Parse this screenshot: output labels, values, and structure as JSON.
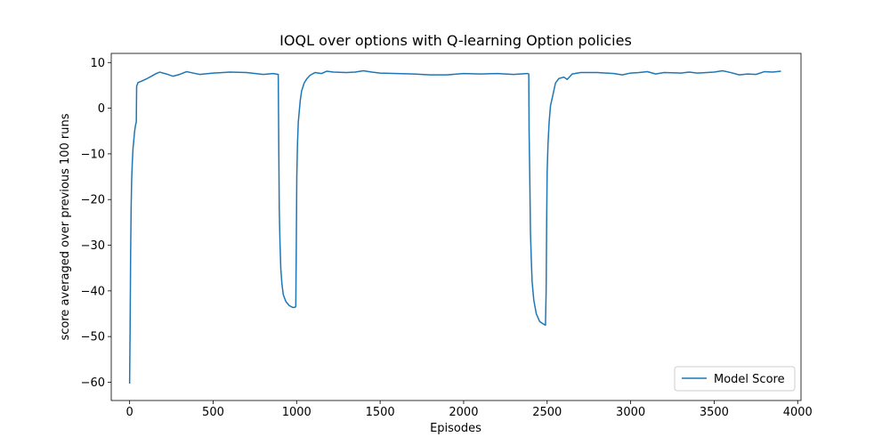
{
  "chart_data": {
    "type": "line",
    "title": "IOQL over options with Q-learning Option policies",
    "xlabel": "Episodes",
    "ylabel": "score averaged over previous 100 runs",
    "xlim": [
      -110,
      4020
    ],
    "ylim": [
      -64,
      12
    ],
    "xticks": [
      0,
      500,
      1000,
      1500,
      2000,
      2500,
      3000,
      3500,
      4000
    ],
    "yticks": [
      10,
      0,
      -10,
      -20,
      -30,
      -40,
      -50,
      -60
    ],
    "grid": false,
    "legend": {
      "position": "lower-right",
      "entries": [
        "Model Score"
      ]
    },
    "series": [
      {
        "name": "Model Score",
        "color": "#1f77b4",
        "points": [
          [
            0,
            -60.3
          ],
          [
            3,
            -48
          ],
          [
            6,
            -32
          ],
          [
            9,
            -22
          ],
          [
            12,
            -16
          ],
          [
            16,
            -12
          ],
          [
            20,
            -9
          ],
          [
            25,
            -7
          ],
          [
            30,
            -5
          ],
          [
            35,
            -3.8
          ],
          [
            40,
            -3
          ],
          [
            42,
            4.8
          ],
          [
            50,
            5.6
          ],
          [
            70,
            5.9
          ],
          [
            100,
            6.4
          ],
          [
            130,
            7.0
          ],
          [
            160,
            7.6
          ],
          [
            180,
            7.9
          ],
          [
            220,
            7.5
          ],
          [
            260,
            7.0
          ],
          [
            300,
            7.4
          ],
          [
            340,
            8.0
          ],
          [
            380,
            7.7
          ],
          [
            420,
            7.4
          ],
          [
            500,
            7.7
          ],
          [
            600,
            7.9
          ],
          [
            700,
            7.8
          ],
          [
            800,
            7.4
          ],
          [
            860,
            7.6
          ],
          [
            890,
            7.4
          ],
          [
            893,
            -8
          ],
          [
            896,
            -22
          ],
          [
            900,
            -29
          ],
          [
            905,
            -35
          ],
          [
            912,
            -38.5
          ],
          [
            920,
            -40.8
          ],
          [
            935,
            -42.3
          ],
          [
            955,
            -43.2
          ],
          [
            975,
            -43.6
          ],
          [
            990,
            -43.6
          ],
          [
            995,
            -43.4
          ],
          [
            998,
            -30
          ],
          [
            1001,
            -15
          ],
          [
            1005,
            -8
          ],
          [
            1010,
            -3
          ],
          [
            1015,
            -1
          ],
          [
            1022,
            1.8
          ],
          [
            1030,
            3.8
          ],
          [
            1045,
            5.5
          ],
          [
            1060,
            6.4
          ],
          [
            1080,
            7.2
          ],
          [
            1110,
            7.8
          ],
          [
            1150,
            7.6
          ],
          [
            1180,
            8.1
          ],
          [
            1220,
            7.9
          ],
          [
            1300,
            7.8
          ],
          [
            1350,
            7.9
          ],
          [
            1400,
            8.2
          ],
          [
            1450,
            7.9
          ],
          [
            1500,
            7.7
          ],
          [
            1600,
            7.6
          ],
          [
            1700,
            7.5
          ],
          [
            1800,
            7.3
          ],
          [
            1900,
            7.3
          ],
          [
            2000,
            7.6
          ],
          [
            2100,
            7.5
          ],
          [
            2200,
            7.6
          ],
          [
            2300,
            7.4
          ],
          [
            2380,
            7.6
          ],
          [
            2390,
            7.5
          ],
          [
            2392,
            -5
          ],
          [
            2396,
            -15
          ],
          [
            2400,
            -27
          ],
          [
            2405,
            -33
          ],
          [
            2410,
            -38
          ],
          [
            2420,
            -42
          ],
          [
            2435,
            -45
          ],
          [
            2455,
            -46.7
          ],
          [
            2475,
            -47.2
          ],
          [
            2490,
            -47.5
          ],
          [
            2494,
            -40
          ],
          [
            2497,
            -25
          ],
          [
            2500,
            -14
          ],
          [
            2505,
            -8
          ],
          [
            2512,
            -3
          ],
          [
            2520,
            0.5
          ],
          [
            2535,
            3
          ],
          [
            2550,
            5.5
          ],
          [
            2570,
            6.5
          ],
          [
            2600,
            6.8
          ],
          [
            2620,
            6.3
          ],
          [
            2650,
            7.5
          ],
          [
            2700,
            7.8
          ],
          [
            2800,
            7.8
          ],
          [
            2900,
            7.6
          ],
          [
            2950,
            7.3
          ],
          [
            3000,
            7.7
          ],
          [
            3050,
            7.8
          ],
          [
            3100,
            8.0
          ],
          [
            3150,
            7.5
          ],
          [
            3200,
            7.8
          ],
          [
            3300,
            7.7
          ],
          [
            3350,
            7.9
          ],
          [
            3400,
            7.7
          ],
          [
            3500,
            7.9
          ],
          [
            3550,
            8.2
          ],
          [
            3600,
            7.8
          ],
          [
            3650,
            7.3
          ],
          [
            3700,
            7.5
          ],
          [
            3750,
            7.4
          ],
          [
            3800,
            8.0
          ],
          [
            3850,
            7.9
          ],
          [
            3900,
            8.1
          ]
        ]
      }
    ]
  }
}
